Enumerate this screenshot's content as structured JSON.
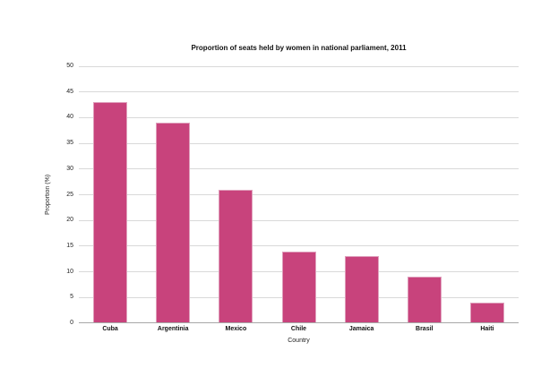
{
  "title": "Proportion of seats held by women in national parliament, 2011",
  "chart_data": {
    "type": "bar",
    "title": "Proportion of seats held by women in national parliament, 2011",
    "categories": [
      "Cuba",
      "Argentinia",
      "Mexico",
      "Chile",
      "Jamaica",
      "Brasil",
      "Haiti"
    ],
    "values": [
      43,
      39,
      26,
      14,
      13,
      9,
      4
    ],
    "xlabel": "Country",
    "ylabel": "Proportion (%)",
    "ylim": [
      0,
      50
    ],
    "ytick_step": 5,
    "yticks": [
      0,
      5,
      10,
      15,
      20,
      25,
      30,
      35,
      40,
      45,
      50
    ],
    "grid": true,
    "legend": "none",
    "colors": {
      "bar_fill": "#c8437c",
      "bar_edge": "#dfa0bc",
      "gridline": "#d9d9d9",
      "x_axis_line": "#a8a8a8",
      "text": "#111111"
    }
  }
}
